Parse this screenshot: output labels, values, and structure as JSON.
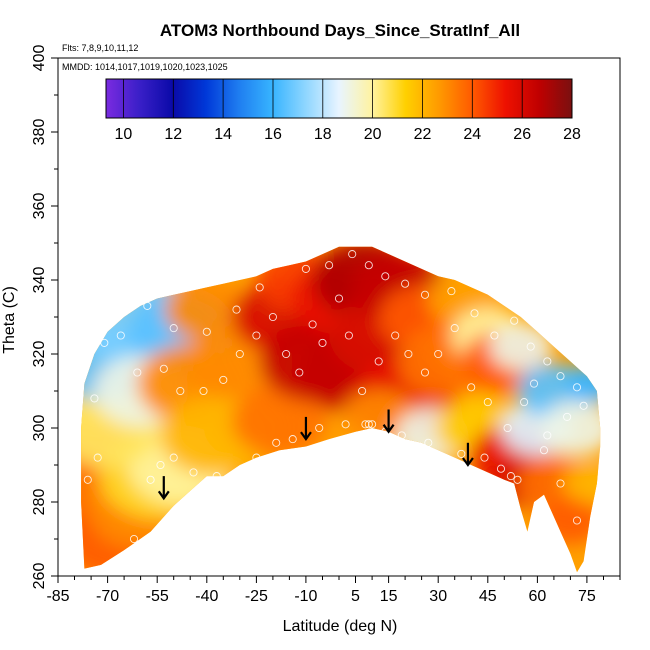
{
  "chart_data": {
    "type": "heatmap",
    "title": "ATOM3 Northbound Days_Since_StratInf_All",
    "flights_note": "Flts: 7,8,9,10,11,12",
    "dates_note": "MMDD: 1014,1017,1019,1020,1023,1025",
    "xlabel": "Latitude (deg N)",
    "ylabel": "Theta (C)",
    "xlim": [
      -85,
      85
    ],
    "ylim": [
      260,
      400
    ],
    "x_ticks": [
      -85,
      -70,
      -55,
      -40,
      -25,
      -10,
      5,
      15,
      30,
      45,
      60,
      75
    ],
    "y_ticks": [
      260,
      280,
      300,
      320,
      340,
      360,
      380,
      400
    ],
    "colorbar": {
      "ticks": [
        10,
        12,
        14,
        16,
        18,
        20,
        22,
        24,
        26,
        28
      ],
      "range": [
        9.3,
        28
      ],
      "colors": [
        "#7a2be0",
        "#3a1fc8",
        "#0a0aa8",
        "#0038d8",
        "#1f7ef0",
        "#37b4ff",
        "#8fd6ff",
        "#e8f4ff",
        "#fff3a0",
        "#ffd000",
        "#ff9a00",
        "#ff5a00",
        "#ee1100",
        "#c00000",
        "#7a1010"
      ]
    },
    "arrows_lat": [
      -53,
      -10,
      15,
      39
    ],
    "arrow_glyph": "↓",
    "lower_boundary": [
      [
        -77,
        262
      ],
      [
        -72,
        263
      ],
      [
        -65,
        267
      ],
      [
        -57,
        272
      ],
      [
        -50,
        279
      ],
      [
        -45,
        283
      ],
      [
        -40,
        287
      ],
      [
        -35,
        287
      ],
      [
        -30,
        290
      ],
      [
        -25,
        292
      ],
      [
        -18,
        294
      ],
      [
        -10,
        295
      ],
      [
        -3,
        297
      ],
      [
        5,
        299
      ],
      [
        10,
        300
      ],
      [
        15,
        299
      ],
      [
        20,
        297
      ],
      [
        25,
        296
      ],
      [
        30,
        294
      ],
      [
        35,
        292
      ],
      [
        40,
        290
      ],
      [
        45,
        288
      ],
      [
        50,
        286
      ],
      [
        53,
        285
      ],
      [
        55,
        278
      ],
      [
        57,
        272
      ],
      [
        59,
        280
      ],
      [
        62,
        282
      ],
      [
        65,
        276
      ],
      [
        68,
        270
      ],
      [
        70,
        266
      ],
      [
        72,
        261
      ],
      [
        74,
        264
      ],
      [
        76,
        276
      ],
      [
        78,
        285
      ],
      [
        79,
        295
      ]
    ],
    "upper_boundary": [
      [
        -77,
        262
      ],
      [
        -78,
        280
      ],
      [
        -78,
        300
      ],
      [
        -77,
        312
      ],
      [
        -74,
        320
      ],
      [
        -70,
        326
      ],
      [
        -65,
        330
      ],
      [
        -60,
        333
      ],
      [
        -55,
        335
      ],
      [
        -50,
        336
      ],
      [
        -45,
        337
      ],
      [
        -40,
        338
      ],
      [
        -35,
        339
      ],
      [
        -30,
        340
      ],
      [
        -25,
        341
      ],
      [
        -20,
        343
      ],
      [
        -15,
        344
      ],
      [
        -10,
        345
      ],
      [
        -5,
        347
      ],
      [
        0,
        349
      ],
      [
        5,
        349
      ],
      [
        10,
        349
      ],
      [
        15,
        347
      ],
      [
        20,
        345
      ],
      [
        25,
        343
      ],
      [
        30,
        341
      ],
      [
        35,
        340
      ],
      [
        40,
        338
      ],
      [
        45,
        336
      ],
      [
        50,
        333
      ],
      [
        55,
        330
      ],
      [
        60,
        326
      ],
      [
        65,
        322
      ],
      [
        70,
        318
      ],
      [
        75,
        314
      ],
      [
        78,
        310
      ],
      [
        79,
        300
      ],
      [
        79,
        295
      ]
    ],
    "color_blobs": [
      {
        "lat": -74,
        "theta": 285,
        "value": 23.5,
        "r": 14
      },
      {
        "lat": -68,
        "theta": 270,
        "value": 24,
        "r": 10
      },
      {
        "lat": -60,
        "theta": 278,
        "value": 23,
        "r": 10
      },
      {
        "lat": -55,
        "theta": 287,
        "value": 21,
        "r": 11
      },
      {
        "lat": -48,
        "theta": 290,
        "value": 20,
        "r": 10
      },
      {
        "lat": -70,
        "theta": 300,
        "value": 20.5,
        "r": 10
      },
      {
        "lat": -72,
        "theta": 318,
        "value": 16.5,
        "r": 10
      },
      {
        "lat": -60,
        "theta": 328,
        "value": 17,
        "r": 12
      },
      {
        "lat": -48,
        "theta": 326,
        "value": 16.5,
        "r": 10
      },
      {
        "lat": -60,
        "theta": 310,
        "value": 19,
        "r": 9
      },
      {
        "lat": -45,
        "theta": 312,
        "value": 23,
        "r": 10
      },
      {
        "lat": -38,
        "theta": 298,
        "value": 22,
        "r": 10
      },
      {
        "lat": -30,
        "theta": 318,
        "value": 23,
        "r": 10
      },
      {
        "lat": -40,
        "theta": 332,
        "value": 23,
        "r": 8
      },
      {
        "lat": -28,
        "theta": 300,
        "value": 22,
        "r": 8
      },
      {
        "lat": -18,
        "theta": 302,
        "value": 23.5,
        "r": 9
      },
      {
        "lat": -18,
        "theta": 330,
        "value": 26,
        "r": 9
      },
      {
        "lat": -12,
        "theta": 340,
        "value": 24.5,
        "r": 8
      },
      {
        "lat": -8,
        "theta": 318,
        "value": 26.5,
        "r": 10
      },
      {
        "lat": 0,
        "theta": 335,
        "value": 25.5,
        "r": 9
      },
      {
        "lat": 3,
        "theta": 315,
        "value": 26.5,
        "r": 10
      },
      {
        "lat": 8,
        "theta": 340,
        "value": 27,
        "r": 10
      },
      {
        "lat": 13,
        "theta": 325,
        "value": 26,
        "r": 10
      },
      {
        "lat": 18,
        "theta": 338,
        "value": 26.5,
        "r": 9
      },
      {
        "lat": 20,
        "theta": 308,
        "value": 25.5,
        "r": 10
      },
      {
        "lat": 12,
        "theta": 303,
        "value": 23,
        "r": 7
      },
      {
        "lat": 25,
        "theta": 330,
        "value": 24,
        "r": 8
      },
      {
        "lat": 32,
        "theta": 318,
        "value": 23.5,
        "r": 9
      },
      {
        "lat": 38,
        "theta": 335,
        "value": 22.5,
        "r": 7
      },
      {
        "lat": 28,
        "theta": 298,
        "value": 19,
        "r": 7
      },
      {
        "lat": 42,
        "theta": 300,
        "value": 21.5,
        "r": 8
      },
      {
        "lat": 45,
        "theta": 325,
        "value": 20,
        "r": 7
      },
      {
        "lat": 50,
        "theta": 318,
        "value": 24,
        "r": 8
      },
      {
        "lat": 52,
        "theta": 292,
        "value": 25.5,
        "r": 8
      },
      {
        "lat": 56,
        "theta": 285,
        "value": 26,
        "r": 6
      },
      {
        "lat": 60,
        "theta": 300,
        "value": 18.5,
        "r": 7
      },
      {
        "lat": 65,
        "theta": 310,
        "value": 16.5,
        "r": 7
      },
      {
        "lat": 65,
        "theta": 285,
        "value": 23.5,
        "r": 7
      },
      {
        "lat": 72,
        "theta": 300,
        "value": 19,
        "r": 7
      },
      {
        "lat": 70,
        "theta": 275,
        "value": 24,
        "r": 6
      },
      {
        "lat": 76,
        "theta": 285,
        "value": 22,
        "r": 5
      },
      {
        "lat": 77,
        "theta": 312,
        "value": 16,
        "r": 5
      },
      {
        "lat": 55,
        "theta": 322,
        "value": 19,
        "r": 6
      }
    ],
    "obs_points": [
      [
        -76,
        286
      ],
      [
        -73,
        292
      ],
      [
        -69,
        263
      ],
      [
        -62,
        270
      ],
      [
        -57,
        286
      ],
      [
        -54,
        290
      ],
      [
        -50,
        292
      ],
      [
        -44,
        288
      ],
      [
        -37,
        287
      ],
      [
        -25,
        292
      ],
      [
        -19,
        296
      ],
      [
        -14,
        297
      ],
      [
        -6,
        300
      ],
      [
        2,
        301
      ],
      [
        8,
        301
      ],
      [
        9,
        301
      ],
      [
        10,
        301
      ],
      [
        14,
        299
      ],
      [
        19,
        298
      ],
      [
        27,
        296
      ],
      [
        37,
        293
      ],
      [
        44,
        292
      ],
      [
        49,
        289
      ],
      [
        52,
        287
      ],
      [
        54,
        286
      ],
      [
        62,
        294
      ],
      [
        67,
        285
      ],
      [
        72,
        275
      ],
      [
        -74,
        308
      ],
      [
        -71,
        323
      ],
      [
        -66,
        325
      ],
      [
        -61,
        315
      ],
      [
        -53,
        316
      ],
      [
        -48,
        310
      ],
      [
        -41,
        310
      ],
      [
        -35,
        313
      ],
      [
        -30,
        320
      ],
      [
        -25,
        325
      ],
      [
        -20,
        330
      ],
      [
        -16,
        320
      ],
      [
        -12,
        315
      ],
      [
        -8,
        328
      ],
      [
        -5,
        323
      ],
      [
        0,
        335
      ],
      [
        3,
        325
      ],
      [
        7,
        310
      ],
      [
        12,
        318
      ],
      [
        17,
        325
      ],
      [
        21,
        320
      ],
      [
        26,
        315
      ],
      [
        30,
        320
      ],
      [
        35,
        327
      ],
      [
        40,
        311
      ],
      [
        45,
        307
      ],
      [
        51,
        300
      ],
      [
        56,
        307
      ],
      [
        59,
        312
      ],
      [
        63,
        298
      ],
      [
        69,
        303
      ],
      [
        74,
        306
      ],
      [
        78,
        318
      ],
      [
        -58,
        333
      ],
      [
        -50,
        327
      ],
      [
        -40,
        326
      ],
      [
        -31,
        332
      ],
      [
        -24,
        338
      ],
      [
        -17,
        345
      ],
      [
        -10,
        343
      ],
      [
        -3,
        344
      ],
      [
        4,
        347
      ],
      [
        9,
        344
      ],
      [
        14,
        341
      ],
      [
        20,
        339
      ],
      [
        26,
        336
      ],
      [
        34,
        337
      ],
      [
        41,
        331
      ],
      [
        47,
        325
      ],
      [
        53,
        329
      ],
      [
        58,
        322
      ],
      [
        63,
        318
      ],
      [
        67,
        314
      ],
      [
        72,
        311
      ]
    ]
  }
}
